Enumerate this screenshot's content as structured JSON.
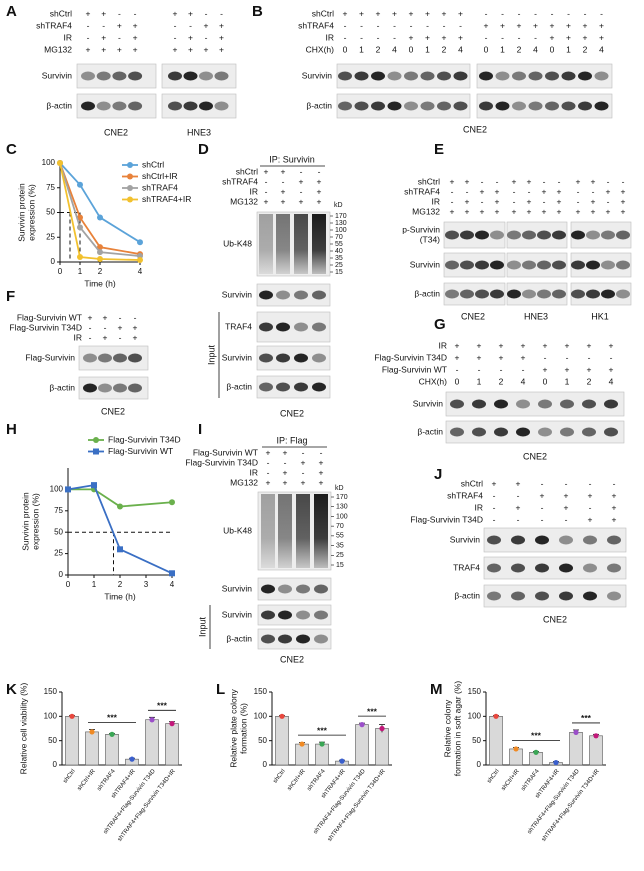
{
  "blots": [
    {
      "label": "A",
      "conditions": [
        {
          "name": "shCtrl",
          "marks": [
            "+",
            "+",
            "-",
            "-",
            "+",
            "+",
            "-",
            "-"
          ]
        },
        {
          "name": "shTRAF4",
          "marks": [
            "-",
            "-",
            "+",
            "+",
            "-",
            "-",
            "+",
            "+"
          ]
        },
        {
          "name": "IR",
          "marks": [
            "-",
            "+",
            "-",
            "+",
            "-",
            "+",
            "-",
            "+"
          ]
        },
        {
          "name": "MG132",
          "marks": [
            "+",
            "+",
            "+",
            "+",
            "+",
            "+",
            "+",
            "+"
          ]
        }
      ],
      "bands": [
        "Survivin",
        "β-actin"
      ],
      "captions": [
        "CNE2",
        "HNE3"
      ]
    },
    {
      "label": "B",
      "conditions": [
        {
          "name": "shCtrl",
          "marks": [
            "+",
            "+",
            "+",
            "+",
            "+",
            "+",
            "+",
            "+",
            "-",
            "-",
            "-",
            "-",
            "-",
            "-",
            "-",
            "-"
          ]
        },
        {
          "name": "shTRAF4",
          "marks": [
            "-",
            "-",
            "-",
            "-",
            "-",
            "-",
            "-",
            "-",
            "+",
            "+",
            "+",
            "+",
            "+",
            "+",
            "+",
            "+"
          ]
        },
        {
          "name": "IR",
          "marks": [
            "-",
            "-",
            "-",
            "-",
            "+",
            "+",
            "+",
            "+",
            "-",
            "-",
            "-",
            "-",
            "+",
            "+",
            "+",
            "+"
          ]
        },
        {
          "name": "CHX(h)",
          "marks": [
            "0",
            "1",
            "2",
            "4",
            "0",
            "1",
            "2",
            "4",
            "0",
            "1",
            "2",
            "4",
            "0",
            "1",
            "2",
            "4"
          ]
        }
      ],
      "bands": [
        "Survivin",
        "β-actin"
      ],
      "captions": [
        "CNE2"
      ]
    },
    {
      "label": "D",
      "header": "IP: Survivin",
      "conditions": [
        {
          "name": "shCtrl",
          "marks": [
            "+",
            "+",
            "-",
            "-"
          ]
        },
        {
          "name": "shTRAF4",
          "marks": [
            "-",
            "-",
            "+",
            "+"
          ]
        },
        {
          "name": "IR",
          "marks": [
            "-",
            "+",
            "-",
            "+"
          ]
        },
        {
          "name": "MG132",
          "marks": [
            "+",
            "+",
            "+",
            "+"
          ]
        }
      ],
      "kd_unit": "kD",
      "kd_markers": [
        170,
        130,
        100,
        70,
        55,
        40,
        35,
        25,
        15
      ],
      "bands": [
        "Ub-K48",
        "Survivin",
        "TRAF4",
        "Survivin",
        "β-actin"
      ],
      "input_label": "Input",
      "captions": [
        "CNE2"
      ]
    },
    {
      "label": "E",
      "conditions": [
        {
          "name": "shCtrl",
          "marks": [
            "+",
            "+",
            "-",
            "-",
            "+",
            "+",
            "-",
            "-",
            "+",
            "+",
            "-",
            "-"
          ]
        },
        {
          "name": "shTRAF4",
          "marks": [
            "-",
            "-",
            "+",
            "+",
            "-",
            "-",
            "+",
            "+",
            "-",
            "-",
            "+",
            "+"
          ]
        },
        {
          "name": "IR",
          "marks": [
            "-",
            "+",
            "-",
            "+",
            "-",
            "+",
            "-",
            "+",
            "-",
            "+",
            "-",
            "+"
          ]
        },
        {
          "name": "MG132",
          "marks": [
            "+",
            "+",
            "+",
            "+",
            "+",
            "+",
            "+",
            "+",
            "+",
            "+",
            "+",
            "+"
          ]
        }
      ],
      "bands": [
        [
          "p-Survivin",
          "(T34)"
        ],
        "Survivin",
        "β-actin"
      ],
      "captions": [
        "CNE2",
        "HNE3",
        "HK1"
      ]
    },
    {
      "label": "F",
      "conditions": [
        {
          "name": "Flag-Survivin WT",
          "marks": [
            "+",
            "+",
            "-",
            "-"
          ]
        },
        {
          "name": "Flag-Survivin T34D",
          "marks": [
            "-",
            "-",
            "+",
            "+"
          ]
        },
        {
          "name": "IR",
          "marks": [
            "-",
            "+",
            "-",
            "+"
          ]
        }
      ],
      "bands": [
        "Flag-Survivin",
        "β-actin"
      ],
      "captions": [
        "CNE2"
      ]
    },
    {
      "label": "G",
      "conditions": [
        {
          "name": "IR",
          "marks": [
            "+",
            "+",
            "+",
            "+",
            "+",
            "+",
            "+",
            "+"
          ]
        },
        {
          "name": "Flag-Survivin T34D",
          "marks": [
            "+",
            "+",
            "+",
            "+",
            "-",
            "-",
            "-",
            "-"
          ]
        },
        {
          "name": "Flag-Survivin WT",
          "marks": [
            "-",
            "-",
            "-",
            "-",
            "+",
            "+",
            "+",
            "+"
          ]
        },
        {
          "name": "CHX(h)",
          "marks": [
            "0",
            "1",
            "2",
            "4",
            "0",
            "1",
            "2",
            "4"
          ]
        }
      ],
      "bands": [
        "Survivin",
        "β-actin"
      ],
      "captions": [
        "CNE2"
      ]
    },
    {
      "label": "I",
      "header": "IP: Flag",
      "conditions": [
        {
          "name": "Flag-Survivin WT",
          "marks": [
            "+",
            "+",
            "-",
            "-"
          ]
        },
        {
          "name": "Flag-Survivin T34D",
          "marks": [
            "-",
            "-",
            "+",
            "+"
          ]
        },
        {
          "name": "IR",
          "marks": [
            "-",
            "+",
            "-",
            "+"
          ]
        },
        {
          "name": "MG132",
          "marks": [
            "+",
            "+",
            "+",
            "+"
          ]
        }
      ],
      "kd_unit": "kD",
      "kd_markers": [
        170,
        130,
        100,
        70,
        55,
        35,
        25,
        15
      ],
      "bands": [
        "Ub-K48",
        "Survivin",
        "Survivin",
        "β-actin"
      ],
      "input_label": "Input",
      "captions": [
        "CNE2"
      ]
    },
    {
      "label": "J",
      "conditions": [
        {
          "name": "shCtrl",
          "marks": [
            "+",
            "+",
            "-",
            "-",
            "-",
            "-"
          ]
        },
        {
          "name": "shTRAF4",
          "marks": [
            "-",
            "-",
            "+",
            "+",
            "+",
            "+"
          ]
        },
        {
          "name": "IR",
          "marks": [
            "-",
            "+",
            "-",
            "+",
            "-",
            "+"
          ]
        },
        {
          "name": "Flag-Survivin T34D",
          "marks": [
            "-",
            "-",
            "-",
            "-",
            "+",
            "+"
          ]
        }
      ],
      "bands": [
        "Survivin",
        "TRAF4",
        "β-actin"
      ],
      "captions": [
        "CNE2"
      ]
    }
  ],
  "chart_data": [
    {
      "type": "line",
      "panel": "C",
      "x": [
        0,
        1,
        2,
        4
      ],
      "xlim": [
        0,
        4
      ],
      "xticks": [
        0,
        1,
        2,
        4
      ],
      "ylim": [
        0,
        100
      ],
      "yticks": [
        0,
        25,
        50,
        75,
        100
      ],
      "xlabel": "Time (h)",
      "ylabel": [
        "Survivin protein",
        "expression (%)"
      ],
      "hlines": [
        50
      ],
      "vlines": [
        0.5,
        1
      ],
      "legend": "upper right",
      "series": [
        {
          "name": "shCtrl",
          "color": "#5ba3d9",
          "values": [
            100,
            78,
            45,
            20
          ]
        },
        {
          "name": "shCtrl+IR",
          "color": "#e8823a",
          "values": [
            100,
            45,
            15,
            8
          ]
        },
        {
          "name": "shTRAF4",
          "color": "#a3a3a3",
          "values": [
            100,
            35,
            10,
            6
          ]
        },
        {
          "name": "shTRAF4+IR",
          "color": "#f2c12e",
          "values": [
            100,
            5,
            3,
            2
          ]
        }
      ]
    },
    {
      "type": "line",
      "panel": "H",
      "x": [
        0,
        1,
        2,
        4
      ],
      "xlim": [
        0,
        4
      ],
      "xticks": [
        0,
        1,
        2,
        3,
        4
      ],
      "ylim": [
        0,
        125
      ],
      "yticks": [
        0,
        25,
        50,
        75,
        100
      ],
      "xlabel": "Time (h)",
      "ylabel": [
        "Survivin protein",
        "expression (%)"
      ],
      "hlines": [
        50
      ],
      "vlines": [
        1.75
      ],
      "legend": "top",
      "series": [
        {
          "name": "Flag-Survivin T34D",
          "color": "#6ab04c",
          "marker": "circle",
          "values": [
            100,
            100,
            80,
            85
          ]
        },
        {
          "name": "Flag-Survivin WT",
          "color": "#3a6fc4",
          "marker": "square",
          "values": [
            100,
            105,
            30,
            2
          ]
        }
      ]
    },
    {
      "type": "bar",
      "panel": "K",
      "categories": [
        "shCtrl",
        "shCtrl+IR",
        "shTRAF4",
        "shTRAF4+IR",
        "shTRAF4+Flag-Survivin T34D",
        "shTRAF4+Flag-Survivin T34D+IR"
      ],
      "values": [
        100,
        68,
        63,
        12,
        93,
        85
      ],
      "errors": [
        2,
        5,
        2,
        2,
        5,
        4
      ],
      "color": "#d9d9d9",
      "point_colors": [
        "#e8473e",
        "#f08a24",
        "#3aa655",
        "#3a5fcd",
        "#9b4fc9",
        "#c2187a"
      ],
      "ylim": [
        0,
        150
      ],
      "yticks": [
        0,
        50,
        100,
        150
      ],
      "ylabel": [
        "Relative cell viability (%)"
      ],
      "annotations": [
        "***",
        "***"
      ]
    },
    {
      "type": "bar",
      "panel": "L",
      "categories": [
        "shCtrl",
        "shCtrl+IR",
        "shTRAF4",
        "shTRAF4+IR",
        "shTRAF4+Flag-Survivin T34D",
        "shTRAF4+Flag-Survivin T34D+IR"
      ],
      "values": [
        100,
        43,
        43,
        8,
        83,
        75
      ],
      "errors": [
        2,
        3,
        4,
        2,
        3,
        8
      ],
      "color": "#d9d9d9",
      "point_colors": [
        "#e8473e",
        "#f08a24",
        "#3aa655",
        "#3a5fcd",
        "#9b4fc9",
        "#c2187a"
      ],
      "ylim": [
        0,
        150
      ],
      "yticks": [
        0,
        50,
        100,
        150
      ],
      "ylabel": [
        "Relative plate colony",
        "formation (%)"
      ],
      "annotations": [
        "***",
        "***"
      ]
    },
    {
      "type": "bar",
      "panel": "M",
      "categories": [
        "shCtrl",
        "shCtrl+IR",
        "shTRAF4",
        "shTRAF4+IR",
        "shTRAF4+Flag-Survivin T34D",
        "shTRAF4+Flag-Survivin T34D+IR"
      ],
      "values": [
        100,
        33,
        26,
        5,
        67,
        60
      ],
      "errors": [
        2,
        3,
        2,
        2,
        5,
        3
      ],
      "color": "#d9d9d9",
      "point_colors": [
        "#e8473e",
        "#f08a24",
        "#3aa655",
        "#3a5fcd",
        "#9b4fc9",
        "#c2187a"
      ],
      "ylim": [
        0,
        150
      ],
      "yticks": [
        0,
        50,
        100,
        150
      ],
      "ylabel": [
        "Relative colony",
        "formation in soft agar (%)"
      ],
      "annotations": [
        "***",
        "***"
      ]
    }
  ]
}
